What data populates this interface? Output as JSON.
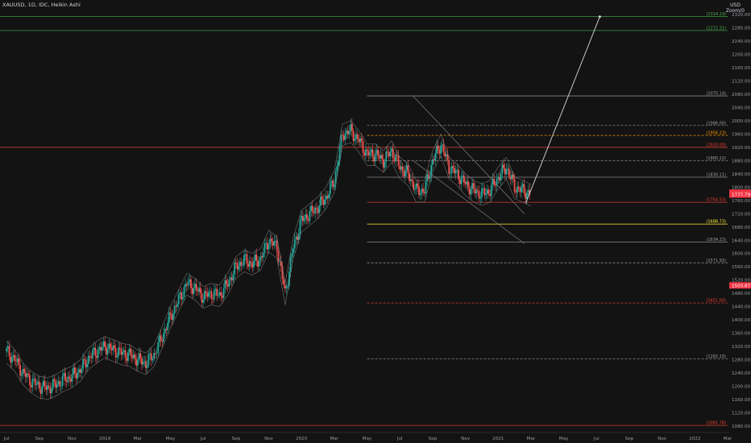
{
  "header": {
    "symbol_line": "XAUUSD, 1D, IDC, Heikin Ashi"
  },
  "price_scale": {
    "currency": "USD",
    "mode_label": "Zoom/0"
  },
  "chart_data": {
    "type": "candlestick",
    "title": "XAUUSD, 1D, IDC, Heikin Ashi",
    "xlabel": "",
    "ylabel": "",
    "ylim": [
      1070,
      2340
    ],
    "y_ticks": [
      1080,
      1120,
      1160,
      1200,
      1240,
      1280,
      1320,
      1360,
      1400,
      1440,
      1480,
      1520,
      1560,
      1600,
      1640,
      1680,
      1720,
      1760,
      1800,
      1840,
      1880,
      1920,
      1960,
      2000,
      2040,
      2080,
      2120,
      2160,
      2200,
      2240,
      2280,
      2320
    ],
    "x_ticks": [
      "Jul",
      "Sep",
      "Nov",
      "2019",
      "Mar",
      "May",
      "Jul",
      "Sep",
      "Nov",
      "2020",
      "Mar",
      "May",
      "Jul",
      "Sep",
      "Nov",
      "2021",
      "Mar",
      "May",
      "Jul",
      "Sep",
      "Nov",
      "2022",
      "Mar"
    ],
    "x_tick_months": [
      0,
      2,
      4,
      6,
      8,
      10,
      12,
      14,
      16,
      18,
      20,
      22,
      24,
      26,
      28,
      30,
      32,
      34,
      36,
      38,
      40,
      42,
      44
    ],
    "x_range_months": [
      -0.4,
      44.1
    ],
    "close_series": {
      "month_index": [
        0,
        0.5,
        1,
        1.5,
        2,
        2.5,
        3,
        3.5,
        4,
        4.5,
        5,
        5.5,
        6,
        6.5,
        7,
        7.5,
        8,
        8.5,
        9,
        9.5,
        10,
        10.5,
        11,
        11.5,
        12,
        12.5,
        13,
        13.5,
        14,
        14.5,
        15,
        15.5,
        16,
        16.5,
        17,
        17.5,
        18,
        18.5,
        19,
        19.5,
        20,
        20.5,
        21,
        21.5,
        22,
        22.5,
        23,
        23.5,
        24,
        24.5,
        25,
        25.5,
        26,
        26.5,
        27,
        27.5,
        28,
        28.5,
        29,
        29.5,
        30,
        30.5,
        31,
        31.5,
        32
      ],
      "price": [
        1305,
        1280,
        1240,
        1215,
        1200,
        1195,
        1205,
        1220,
        1230,
        1250,
        1285,
        1305,
        1320,
        1310,
        1300,
        1295,
        1280,
        1270,
        1295,
        1350,
        1410,
        1460,
        1510,
        1495,
        1470,
        1480,
        1475,
        1510,
        1560,
        1580,
        1570,
        1585,
        1640,
        1620,
        1480,
        1620,
        1700,
        1720,
        1740,
        1770,
        1820,
        1960,
        1970,
        1940,
        1900,
        1900,
        1880,
        1910,
        1860,
        1840,
        1790,
        1790,
        1880,
        1930,
        1860,
        1840,
        1810,
        1790,
        1780,
        1790,
        1830,
        1860,
        1800,
        1790,
        1778
      ]
    },
    "levels": [
      {
        "label": "2314.19",
        "value": 2314.19,
        "color": "#4caf50",
        "style": "solid"
      },
      {
        "label": "2272.31",
        "value": 2272.31,
        "color": "#4caf50",
        "style": "solid"
      },
      {
        "label": "2075.14",
        "value": 2075.14,
        "color": "#9e9e9e",
        "style": "solid"
      },
      {
        "label": "1986.00",
        "value": 1986.0,
        "color": "#9e9e9e",
        "style": "dashed"
      },
      {
        "label": "1956.23",
        "value": 1956.23,
        "color": "#ff9800",
        "style": "dashed"
      },
      {
        "label": "1920.00",
        "value": 1920.0,
        "color": "#f44336",
        "style": "solid"
      },
      {
        "label": "1880.22",
        "value": 1880.22,
        "color": "#9e9e9e",
        "style": "dashed"
      },
      {
        "label": "1830.11",
        "value": 1830.11,
        "color": "#9e9e9e",
        "style": "solid"
      },
      {
        "label": "1754.53",
        "value": 1754.53,
        "color": "#f44336",
        "style": "solid"
      },
      {
        "label": "1688.73",
        "value": 1688.73,
        "color": "#ffeb3b",
        "style": "solid"
      },
      {
        "label": "1634.23",
        "value": 1634.23,
        "color": "#9e9e9e",
        "style": "solid"
      },
      {
        "label": "1571.93",
        "value": 1571.93,
        "color": "#9e9e9e",
        "style": "dashed"
      },
      {
        "label": "1451.00",
        "value": 1451.0,
        "color": "#f44336",
        "style": "dashed"
      },
      {
        "label": "1282.19",
        "value": 1282.19,
        "color": "#9e9e9e",
        "style": "dashed"
      },
      {
        "label": "1081.78",
        "value": 1081.78,
        "color": "#f44336",
        "style": "solid"
      }
    ],
    "price_badges": [
      {
        "label": "1783.26",
        "value": 1783.26,
        "color": "#f23645"
      },
      {
        "label": "1777.79",
        "value": 1777.79,
        "color": "#f23645"
      },
      {
        "label": "1503.87",
        "value": 1503.87,
        "color": "#f23645"
      }
    ],
    "projection": {
      "from_month": 31.7,
      "from_price": 1754,
      "to_month": 36.2,
      "to_price": 2314
    }
  }
}
